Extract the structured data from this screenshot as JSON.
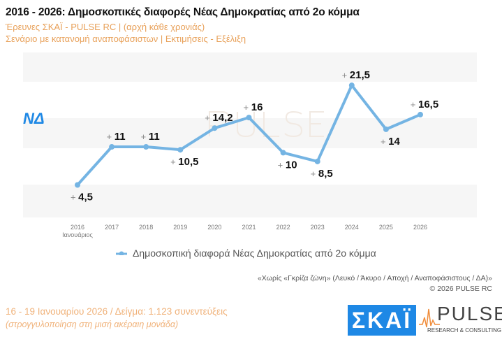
{
  "header": {
    "title": "2016 - 2026: Δημοσκοπικές διαφορές Νέας Δημοκρατίας από 2ο κόμμα",
    "subtitle1": "Έρευνες ΣΚΑΪ - PULSE RC  |  (αρχή κάθε χρονιάς)",
    "subtitle2": "Σενάριο με κατανομή αναποφάσιστων  |  Εκτιμήσεις - Εξέλιξη"
  },
  "party_logo": "ΝΔ",
  "watermark": "PULSE",
  "chart_data": {
    "type": "line",
    "title": "",
    "xlabel": "",
    "ylabel": "",
    "categories": [
      "2016\nΙανουάριος",
      "2017",
      "2018",
      "2019",
      "2020",
      "2021",
      "2022",
      "2023",
      "2024",
      "2025",
      "2026"
    ],
    "category_labels": [
      [
        "2016",
        "Ιανουάριος"
      ],
      [
        "2017"
      ],
      [
        "2018"
      ],
      [
        "2019"
      ],
      [
        "2020"
      ],
      [
        "2021"
      ],
      [
        "2022"
      ],
      [
        "2023"
      ],
      [
        "2024"
      ],
      [
        "2025"
      ],
      [
        "2026"
      ]
    ],
    "series": [
      {
        "name": "Δημοσκοπική διαφορά Νέας Δημοκρατίας από 2ο κόμμα",
        "values": [
          4.5,
          11,
          11,
          10.5,
          14.2,
          16,
          10,
          8.5,
          21.5,
          14,
          16.5
        ],
        "labels": [
          "4,5",
          "11",
          "11",
          "10,5",
          "14,2",
          "16",
          "10",
          "8,5",
          "21,5",
          "14",
          "16,5"
        ],
        "label_position": [
          "below",
          "above",
          "above",
          "below",
          "above",
          "above",
          "below",
          "below",
          "above",
          "below",
          "above"
        ],
        "color": "#74b4e3"
      }
    ],
    "ylim": [
      -1,
      25
    ],
    "y_axis_shown": false,
    "grid": "alternating horizontal bands",
    "legend": "bottom"
  },
  "footer": {
    "note": "«Χωρίς «Γκρίζα ζώνη»   (Λευκό / Άκυρο / Αποχή / Αναποφάσιστους / ΔΑ)»",
    "copyright": "©  2026  PULSE RC",
    "date_sample": "16 - 19 Ιανουαρίου 2026  /  Δείγμα:  1.123 συνεντεύξεις",
    "rounding": "(στρογγυλοποίηση στη μισή ακέραιη μονάδα)",
    "logo_skai": "ΣΚΑΪ",
    "logo_pulse": "PULSE",
    "logo_pulse_sub": "RESEARCH & CONSULTING"
  },
  "colors": {
    "line": "#74b4e3",
    "accent": "#e8a15a",
    "brand_blue": "#1e88e5"
  }
}
